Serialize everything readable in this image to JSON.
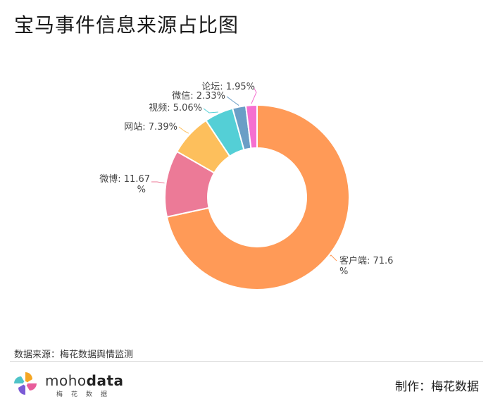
{
  "page": {
    "title": "宝马事件信息来源占比图",
    "source": "数据来源：梅花数据舆情监测",
    "maker": "制作：梅花数据",
    "brand_light": "moho",
    "brand_bold": "data",
    "brand_sub": "梅花数据"
  },
  "chart_data": {
    "type": "pie",
    "variant": "donut",
    "title": "宝马事件信息来源占比图",
    "categories": [
      "客户端",
      "微博",
      "网站",
      "视频",
      "微信",
      "论坛"
    ],
    "values": [
      71.6,
      11.67,
      7.39,
      5.06,
      2.33,
      1.95
    ],
    "labels": [
      "客户端: 71.6",
      "微博: 11.67",
      "网站: 7.39%",
      "视频: 5.06%",
      "微信: 2.33%",
      "论坛: 1.95%"
    ],
    "label_wrap": [
      "%",
      "%",
      "",
      "",
      "",
      ""
    ],
    "colors": [
      "#FF9A57",
      "#EC7A97",
      "#FDBF5C",
      "#54CFD6",
      "#6A9EC6",
      "#F56FD0"
    ],
    "start_angle_deg": 0,
    "direction": "clockwise"
  }
}
